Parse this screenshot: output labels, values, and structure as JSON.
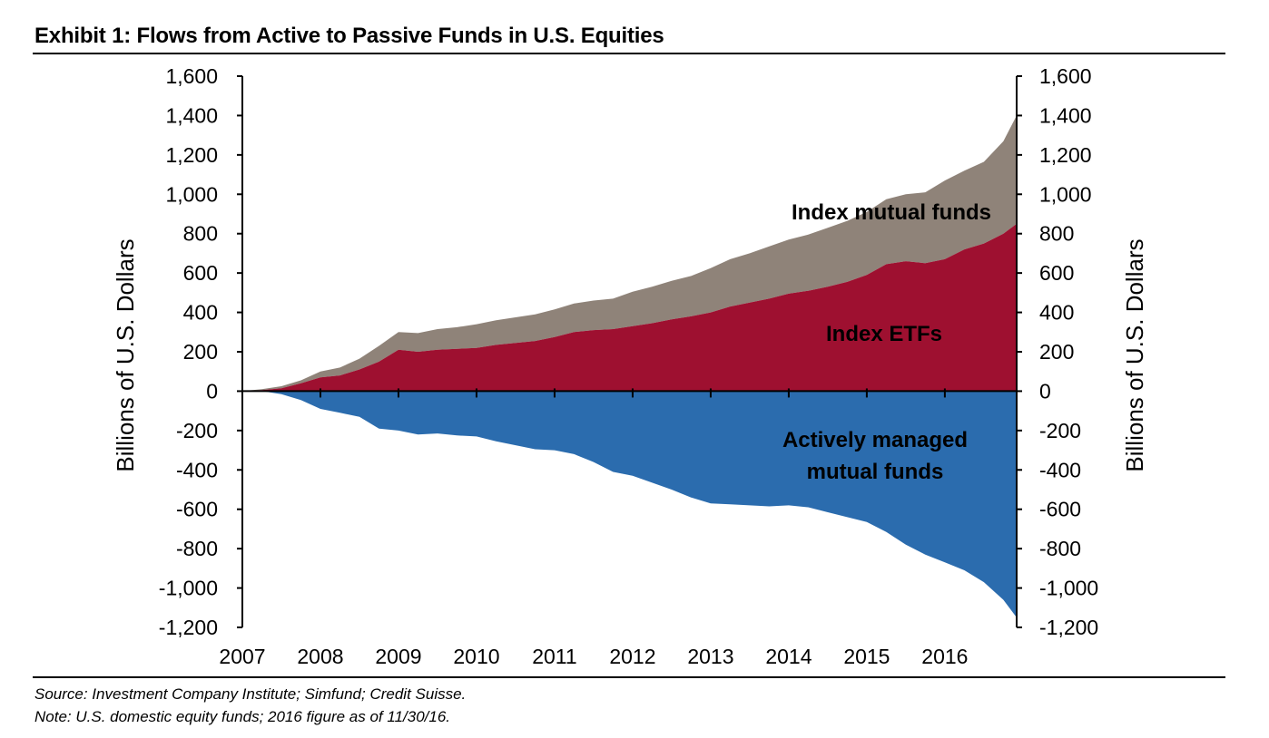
{
  "title": "Exhibit 1: Flows from Active to Passive Funds in U.S. Equities",
  "footer": {
    "source": "Source: Investment Company Institute; Simfund; Credit Suisse.",
    "note": "Note: U.S. domestic equity funds; 2016 figure as of 11/30/16."
  },
  "chart_data": {
    "type": "area",
    "title": "Exhibit 1: Flows from Active to Passive Funds in U.S. Equities",
    "xlabel": "",
    "ylabel": "Billions of U.S. Dollars",
    "ylabel_right": "Billions of U.S. Dollars",
    "xlim": [
      2007,
      2016.92
    ],
    "ylim": [
      -1200,
      1600
    ],
    "x_ticks": [
      "2007",
      "2008",
      "2009",
      "2010",
      "2011",
      "2012",
      "2013",
      "2014",
      "2015",
      "2016"
    ],
    "y_ticks": [
      "-1,200",
      "-1,000",
      "-800",
      "-600",
      "-400",
      "-200",
      "0",
      "200",
      "400",
      "600",
      "800",
      "1,000",
      "1,200",
      "1,400",
      "1,600"
    ],
    "y_tick_values": [
      -1200,
      -1000,
      -800,
      -600,
      -400,
      -200,
      0,
      200,
      400,
      600,
      800,
      1000,
      1200,
      1400,
      1600
    ],
    "x": [
      2007.0,
      2007.25,
      2007.5,
      2007.75,
      2008.0,
      2008.25,
      2008.5,
      2008.75,
      2009.0,
      2009.25,
      2009.5,
      2009.75,
      2010.0,
      2010.25,
      2010.5,
      2010.75,
      2011.0,
      2011.25,
      2011.5,
      2011.75,
      2012.0,
      2012.25,
      2012.5,
      2012.75,
      2013.0,
      2013.25,
      2013.5,
      2013.75,
      2014.0,
      2014.25,
      2014.5,
      2014.75,
      2015.0,
      2015.25,
      2015.5,
      2015.75,
      2016.0,
      2016.25,
      2016.5,
      2016.75,
      2016.92
    ],
    "series": [
      {
        "name": "Index ETFs",
        "color": "#9e1030",
        "values": [
          0,
          5,
          15,
          40,
          70,
          80,
          110,
          150,
          210,
          200,
          210,
          215,
          220,
          235,
          245,
          255,
          275,
          300,
          310,
          315,
          330,
          345,
          365,
          380,
          400,
          430,
          450,
          470,
          495,
          510,
          530,
          555,
          590,
          645,
          660,
          650,
          670,
          720,
          750,
          800,
          850
        ]
      },
      {
        "name": "Index mutual funds",
        "color": "#8f8379",
        "values": [
          0,
          5,
          10,
          15,
          30,
          40,
          55,
          80,
          90,
          95,
          105,
          110,
          120,
          125,
          130,
          135,
          140,
          145,
          150,
          155,
          175,
          185,
          195,
          205,
          225,
          240,
          250,
          265,
          275,
          285,
          300,
          310,
          320,
          330,
          340,
          360,
          400,
          400,
          415,
          470,
          550
        ]
      },
      {
        "name": "Actively managed mutual funds",
        "color": "#2b6cae",
        "values": [
          0,
          0,
          -15,
          -45,
          -90,
          -110,
          -130,
          -190,
          -200,
          -220,
          -215,
          -225,
          -230,
          -255,
          -275,
          -295,
          -300,
          -320,
          -360,
          -410,
          -430,
          -465,
          -500,
          -540,
          -570,
          -575,
          -580,
          -585,
          -580,
          -590,
          -615,
          -640,
          -665,
          -715,
          -780,
          -830,
          -870,
          -910,
          -970,
          -1060,
          -1150
        ]
      }
    ],
    "annotations": [
      "Index mutual funds",
      "Index ETFs",
      "Actively managed",
      "mutual funds"
    ],
    "legend": "none"
  }
}
